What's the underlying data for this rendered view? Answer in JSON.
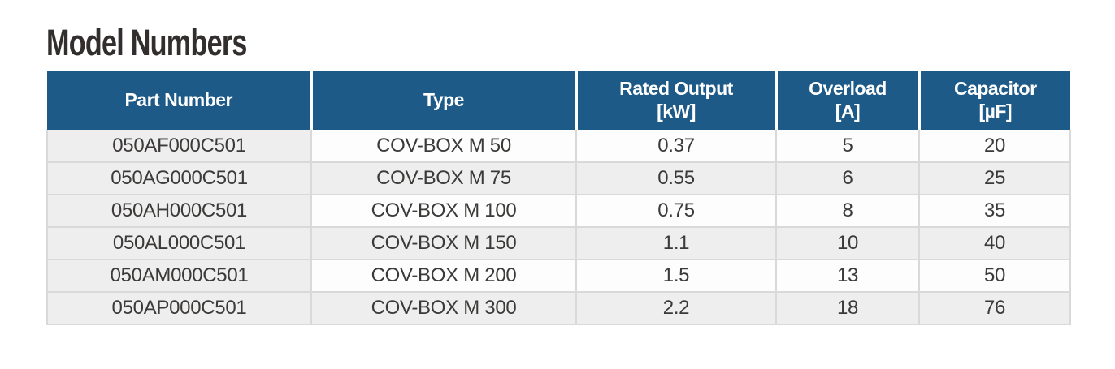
{
  "page": {
    "title": "Model Numbers"
  },
  "colors": {
    "header_bg": "#1e5a87",
    "header_text": "#ffffff",
    "row_white_bg": "#fdfdfd",
    "row_gray_bg": "#efeeee",
    "first_column_bg": "#efeeee",
    "cell_border": "#d9d9d8",
    "title_text": "#332e2e",
    "body_text": "#3b3a39"
  },
  "table": {
    "columns": [
      {
        "label": "Part Number"
      },
      {
        "label": "Type"
      },
      {
        "label": "Rated Output\n[kW]"
      },
      {
        "label": "Overload\n[A]"
      },
      {
        "label": "Capacitor\n[µF]"
      }
    ],
    "rows": [
      {
        "part_number": "050AF000C501",
        "type": "COV-BOX M 50",
        "rated_output_kw": "0.37",
        "overload_a": "5",
        "capacitor_uf": "20"
      },
      {
        "part_number": "050AG000C501",
        "type": "COV-BOX M 75",
        "rated_output_kw": "0.55",
        "overload_a": "6",
        "capacitor_uf": "25"
      },
      {
        "part_number": "050AH000C501",
        "type": "COV-BOX M 100",
        "rated_output_kw": "0.75",
        "overload_a": "8",
        "capacitor_uf": "35"
      },
      {
        "part_number": "050AL000C501",
        "type": "COV-BOX M 150",
        "rated_output_kw": "1.1",
        "overload_a": "10",
        "capacitor_uf": "40"
      },
      {
        "part_number": "050AM000C501",
        "type": "COV-BOX M 200",
        "rated_output_kw": "1.5",
        "overload_a": "13",
        "capacitor_uf": "50"
      },
      {
        "part_number": "050AP000C501",
        "type": "COV-BOX M 300",
        "rated_output_kw": "2.2",
        "overload_a": "18",
        "capacitor_uf": "76"
      }
    ]
  }
}
